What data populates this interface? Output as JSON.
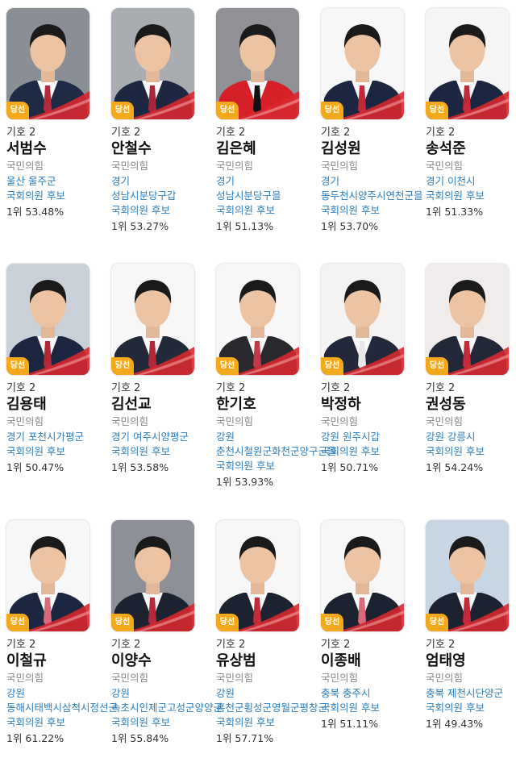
{
  "badge_label": "당선",
  "colors": {
    "badge": "#f3a91b",
    "district_link": "#2d7ebd",
    "swoosh": "#d7282f"
  },
  "candidates": [
    {
      "number": "기호 2",
      "name": "서범수",
      "party": "국민의힘",
      "district": "울산 울주군 국회의원 후보",
      "result": "1위 53.48%",
      "photo_bg": "#8a8f96",
      "jacket": "#1f2a44",
      "tie": "#b52a3a"
    },
    {
      "number": "기호 2",
      "name": "안철수",
      "party": "국민의힘",
      "district": "경기 성남시분당구갑 국회의원 후보",
      "result": "1위 53.27%",
      "photo_bg": "#a9acb1",
      "jacket": "#1d2740",
      "tie": "#a8283a"
    },
    {
      "number": "기호 2",
      "name": "김은혜",
      "party": "국민의힘",
      "district": "경기 성남시분당구을 국회의원 후보",
      "result": "1위 51.13%",
      "photo_bg": "#8f9196",
      "jacket": "#d62028",
      "tie": "#111111"
    },
    {
      "number": "기호 2",
      "name": "김성원",
      "party": "국민의힘",
      "district": "경기 동두천시양주시연천군을 국회의원 후보",
      "result": "1위 53.70%",
      "photo_bg": "#f7f7f7",
      "jacket": "#1c2640",
      "tie": "#c22a3a"
    },
    {
      "number": "기호 2",
      "name": "송석준",
      "party": "국민의힘",
      "district": "경기 이천시 국회의원 후보",
      "result": "1위 51.33%",
      "photo_bg": "#f5f5f5",
      "jacket": "#1c2640",
      "tie": "#c22a3a"
    },
    {
      "number": "기호 2",
      "name": "김용태",
      "party": "국민의힘",
      "district": "경기 포천시가평군 국회의원 후보",
      "result": "1위 50.47%",
      "photo_bg": "#c9d0d8",
      "jacket": "#1c2640",
      "tie": "#b22a3a"
    },
    {
      "number": "기호 2",
      "name": "김선교",
      "party": "국민의힘",
      "district": "경기 여주시양평군 국회의원 후보",
      "result": "1위 53.58%",
      "photo_bg": "#f7f7f7",
      "jacket": "#222a3a",
      "tie": "#b22a3a"
    },
    {
      "number": "기호 2",
      "name": "한기호",
      "party": "국민의힘",
      "district": "강원 춘천시철원군화천군양구군을 국회의원 후보",
      "result": "1위 53.93%",
      "photo_bg": "#f7f7f7",
      "jacket": "#2a2a2e",
      "tie": "#c23a4a"
    },
    {
      "number": "기호 2",
      "name": "박정하",
      "party": "국민의힘",
      "district": "강원 원주시갑 국회의원 후보",
      "result": "1위 50.71%",
      "photo_bg": "#f3f3f3",
      "jacket": "#23283a",
      "tie": "#e8e8e8"
    },
    {
      "number": "기호 2",
      "name": "권성동",
      "party": "국민의힘",
      "district": "강원 강릉시 국회의원 후보",
      "result": "1위 54.24%",
      "photo_bg": "#f1ecec",
      "jacket": "#222838",
      "tie": "#c42a3a"
    },
    {
      "number": "기호 2",
      "name": "이철규",
      "party": "국민의힘",
      "district": "강원 동해시태백시삼척시정선군 국회의원 후보",
      "result": "1위 61.22%",
      "photo_bg": "#f7f7f7",
      "jacket": "#1c2640",
      "tie": "#d86a7a"
    },
    {
      "number": "기호 2",
      "name": "이양수",
      "party": "국민의힘",
      "district": "강원 속초시인제군고성군양양군 국회의원 후보",
      "result": "1위 55.84%",
      "photo_bg": "#8d9096",
      "jacket": "#1c2230",
      "tie": "#b52a3a"
    },
    {
      "number": "기호 2",
      "name": "유상범",
      "party": "국민의힘",
      "district": "강원 홍천군횡성군영월군평창군 국회의원 후보",
      "result": "1위 57.71%",
      "photo_bg": "#f7f7f7",
      "jacket": "#1c2230",
      "tie": "#c42a3a"
    },
    {
      "number": "기호 2",
      "name": "이종배",
      "party": "국민의힘",
      "district": "충북 충주시 국회의원 후보",
      "result": "1위 51.11%",
      "photo_bg": "#f7f7f7",
      "jacket": "#1c2230",
      "tie": "#d86a7a"
    },
    {
      "number": "기호 2",
      "name": "엄태영",
      "party": "국민의힘",
      "district": "충북 제천시단양군 국회의원 후보",
      "result": "1위 49.43%",
      "photo_bg": "#c8d6e4",
      "jacket": "#1c2230",
      "tie": "#c42a3a"
    }
  ]
}
